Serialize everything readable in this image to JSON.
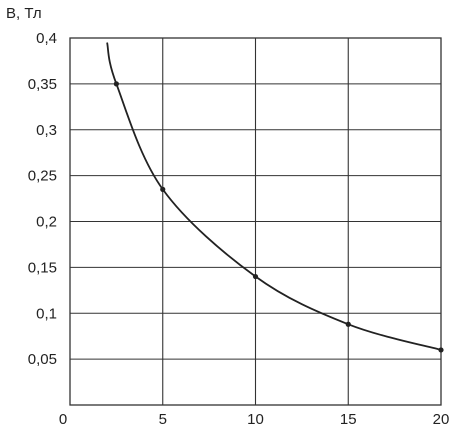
{
  "chart_data": {
    "type": "line",
    "title": "",
    "ylabel": "B, Тл",
    "xlabel": "",
    "xlim": [
      0,
      20
    ],
    "ylim": [
      0,
      0.4
    ],
    "grid": true,
    "x_ticks": [
      {
        "value": 0,
        "label": "0"
      },
      {
        "value": 5,
        "label": "5"
      },
      {
        "value": 10,
        "label": "10"
      },
      {
        "value": 15,
        "label": "15"
      },
      {
        "value": 20,
        "label": "20"
      }
    ],
    "y_ticks": [
      {
        "value": 0.05,
        "label": "0,05"
      },
      {
        "value": 0.1,
        "label": "0,1"
      },
      {
        "value": 0.15,
        "label": "0,15"
      },
      {
        "value": 0.2,
        "label": "0,2"
      },
      {
        "value": 0.25,
        "label": "0,25"
      },
      {
        "value": 0.3,
        "label": "0,3"
      },
      {
        "value": 0.35,
        "label": "0,35"
      },
      {
        "value": 0.4,
        "label": "0,4"
      }
    ],
    "series": [
      {
        "points": [
          {
            "x": 2.5,
            "y": 0.35
          },
          {
            "x": 5,
            "y": 0.235
          },
          {
            "x": 10,
            "y": 0.14
          },
          {
            "x": 15,
            "y": 0.088
          },
          {
            "x": 20,
            "y": 0.06
          }
        ],
        "curve_start": {
          "x": 2,
          "y": 0.395
        }
      }
    ],
    "colors": {
      "line": "#222222",
      "grid": "#333333",
      "background": "#ffffff"
    }
  }
}
